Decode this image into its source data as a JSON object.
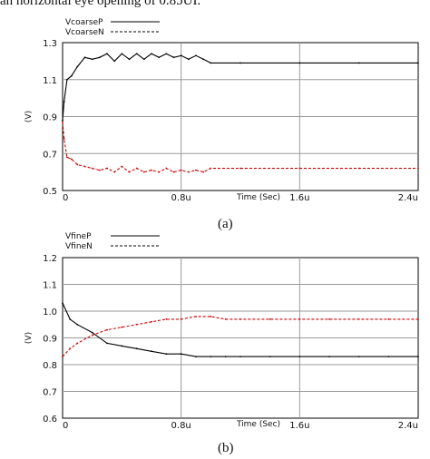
{
  "caption_top": "an horizontal eye opening of 0.85UI.",
  "chart_data": [
    {
      "type": "line",
      "caption": "(a)",
      "xlabel": "Time (Sec)",
      "ylabel": "(V)",
      "xlim": [
        0,
        2.4
      ],
      "ylim": [
        0.5,
        1.3
      ],
      "xticks": [
        "0",
        "0.8u",
        "1.6u",
        "2.4u"
      ],
      "yticks": [
        "0.5",
        "0.7",
        "0.9",
        "1.1",
        "1.3"
      ],
      "grid": true,
      "legend_position": "top-left",
      "series": [
        {
          "name": "VcoarseP",
          "color": "#000000",
          "style": "solid",
          "x": [
            0,
            0.01,
            0.03,
            0.06,
            0.1,
            0.15,
            0.2,
            0.25,
            0.3,
            0.35,
            0.4,
            0.45,
            0.5,
            0.55,
            0.6,
            0.65,
            0.7,
            0.75,
            0.8,
            0.85,
            0.9,
            0.95,
            1.0,
            1.2,
            1.6,
            2.0,
            2.4
          ],
          "values": [
            0.88,
            0.98,
            1.1,
            1.12,
            1.17,
            1.22,
            1.21,
            1.22,
            1.24,
            1.2,
            1.24,
            1.21,
            1.24,
            1.21,
            1.24,
            1.22,
            1.24,
            1.22,
            1.23,
            1.21,
            1.23,
            1.21,
            1.19,
            1.19,
            1.19,
            1.19,
            1.19
          ]
        },
        {
          "name": "VcoarseN",
          "color": "#cc0000",
          "style": "dashed",
          "x": [
            0,
            0.01,
            0.03,
            0.06,
            0.1,
            0.15,
            0.2,
            0.25,
            0.3,
            0.35,
            0.4,
            0.45,
            0.5,
            0.55,
            0.6,
            0.65,
            0.7,
            0.75,
            0.8,
            0.85,
            0.9,
            0.95,
            1.0,
            1.2,
            1.6,
            2.0,
            2.4
          ],
          "values": [
            0.87,
            0.78,
            0.68,
            0.67,
            0.64,
            0.63,
            0.62,
            0.61,
            0.62,
            0.6,
            0.63,
            0.6,
            0.62,
            0.6,
            0.61,
            0.6,
            0.62,
            0.6,
            0.61,
            0.6,
            0.61,
            0.6,
            0.62,
            0.62,
            0.62,
            0.62,
            0.62
          ]
        }
      ]
    },
    {
      "type": "line",
      "caption": "(b)",
      "xlabel": "Time (Sec)",
      "ylabel": "(V)",
      "xlim": [
        0,
        2.4
      ],
      "ylim": [
        0.6,
        1.2
      ],
      "xticks": [
        "0",
        "0.8u",
        "1.6u",
        "2.4u"
      ],
      "yticks": [
        "0.6",
        "0.7",
        "0.8",
        "0.9",
        "1.0",
        "1.1",
        "1.2"
      ],
      "grid": true,
      "legend_position": "top-left",
      "series": [
        {
          "name": "VfineP",
          "color": "#000000",
          "style": "solid",
          "x": [
            0,
            0.05,
            0.1,
            0.2,
            0.3,
            0.4,
            0.5,
            0.6,
            0.7,
            0.8,
            0.9,
            1.0,
            1.1,
            1.2,
            1.4,
            1.6,
            1.8,
            2.0,
            2.2,
            2.4
          ],
          "values": [
            1.03,
            0.97,
            0.95,
            0.92,
            0.88,
            0.87,
            0.86,
            0.85,
            0.84,
            0.84,
            0.83,
            0.83,
            0.83,
            0.83,
            0.83,
            0.83,
            0.83,
            0.83,
            0.83,
            0.83
          ]
        },
        {
          "name": "VfineN",
          "color": "#cc0000",
          "style": "dashed",
          "x": [
            0,
            0.05,
            0.1,
            0.2,
            0.3,
            0.4,
            0.5,
            0.6,
            0.7,
            0.8,
            0.9,
            1.0,
            1.1,
            1.2,
            1.4,
            1.6,
            1.8,
            2.0,
            2.2,
            2.4
          ],
          "values": [
            0.83,
            0.86,
            0.88,
            0.91,
            0.93,
            0.94,
            0.95,
            0.96,
            0.97,
            0.97,
            0.98,
            0.98,
            0.97,
            0.97,
            0.97,
            0.97,
            0.97,
            0.97,
            0.97,
            0.97
          ]
        }
      ]
    }
  ]
}
